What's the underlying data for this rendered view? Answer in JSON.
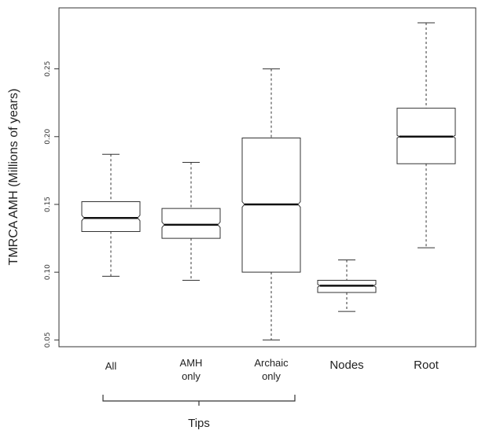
{
  "chart_data": {
    "type": "boxplot",
    "ylabel": "TMRCA AMH (Millions of years)",
    "ylim": [
      0.045,
      0.295
    ],
    "yticks": [
      "0.05",
      "0.10",
      "0.15",
      "0.20",
      "0.25"
    ],
    "notched": true,
    "boxes": [
      {
        "label_lines": [
          "All"
        ],
        "whisker_low": 0.097,
        "q1": 0.13,
        "median": 0.14,
        "q3": 0.152,
        "whisker_high": 0.187,
        "notch_halfwidth": 0.002
      },
      {
        "label_lines": [
          "AMH",
          "only"
        ],
        "whisker_low": 0.094,
        "q1": 0.125,
        "median": 0.135,
        "q3": 0.147,
        "whisker_high": 0.181,
        "notch_halfwidth": 0.002
      },
      {
        "label_lines": [
          "Archaic",
          "only"
        ],
        "whisker_low": 0.05,
        "q1": 0.1,
        "median": 0.15,
        "q3": 0.199,
        "whisker_high": 0.25,
        "notch_halfwidth": 0.002
      },
      {
        "label_lines": [
          "Nodes"
        ],
        "whisker_low": 0.071,
        "q1": 0.085,
        "median": 0.09,
        "q3": 0.094,
        "whisker_high": 0.109,
        "notch_halfwidth": 0.001
      },
      {
        "label_lines": [
          "Root"
        ],
        "whisker_low": 0.118,
        "q1": 0.18,
        "median": 0.2,
        "q3": 0.221,
        "whisker_high": 0.284,
        "notch_halfwidth": 0.001
      }
    ],
    "group_bracket": {
      "label": "Tips",
      "spans_boxes": [
        0,
        2
      ]
    }
  }
}
